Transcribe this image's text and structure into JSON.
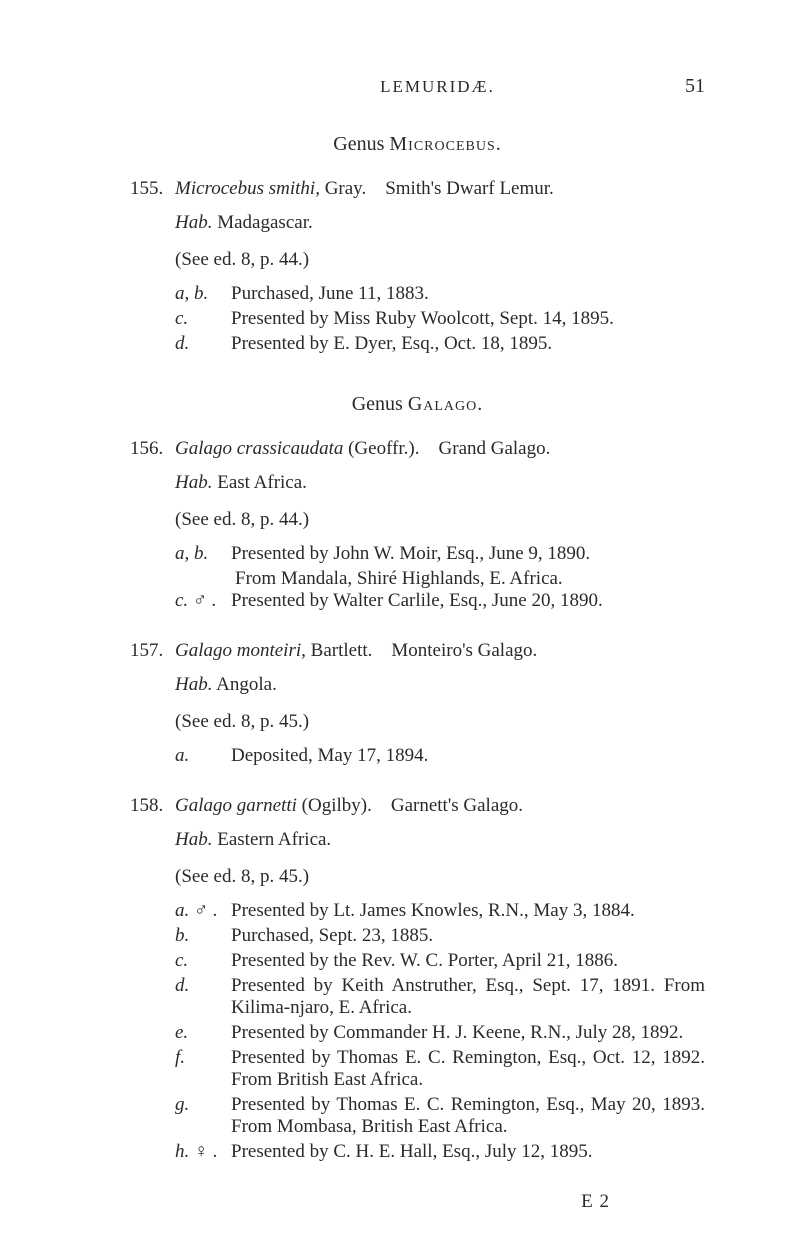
{
  "header": {
    "runningHead": "LEMURIDÆ.",
    "pageNumber": "51"
  },
  "genus1": {
    "prefix": "Genus ",
    "name": "Microcebus."
  },
  "entry155": {
    "number": "155.",
    "species": "Microcebus smithi,",
    "author": " Gray.",
    "common": "Smith's Dwarf Lemur.",
    "habLabel": "Hab.",
    "habText": " Madagascar.",
    "seeEd": "(See ed. 8, p. 44.)",
    "specA": {
      "label": "a, b.",
      "desc": "Purchased, June 11, 1883."
    },
    "specC": {
      "label": "c.",
      "desc": "Presented by Miss Ruby Woolcott, Sept. 14, 1895."
    },
    "specD": {
      "label": "d.",
      "desc": "Presented by E. Dyer, Esq., Oct. 18, 1895."
    }
  },
  "genus2": {
    "prefix": "Genus ",
    "name": "Galago."
  },
  "entry156": {
    "number": "156.",
    "species": "Galago crassicaudata",
    "author": " (Geoffr.).",
    "common": "Grand Galago.",
    "habLabel": "Hab.",
    "habText": " East Africa.",
    "seeEd": "(See ed. 8, p. 44.)",
    "specA": {
      "label": "a, b.",
      "desc": "Presented by John W. Moir, Esq., June 9, 1890."
    },
    "specACont": "From Mandala, Shiré Highlands, E. Africa.",
    "specC": {
      "label": "c. ♂ .",
      "desc": "Presented by Walter Carlile, Esq., June 20, 1890."
    }
  },
  "entry157": {
    "number": "157.",
    "species": "Galago monteiri,",
    "author": " Bartlett.",
    "common": "Monteiro's Galago.",
    "habLabel": "Hab.",
    "habText": " Angola.",
    "seeEd": "(See ed. 8, p. 45.)",
    "specA": {
      "label": "a.",
      "desc": "Deposited, May 17, 1894."
    }
  },
  "entry158": {
    "number": "158.",
    "species": "Galago garnetti",
    "author": " (Ogilby).",
    "common": "Garnett's Galago.",
    "habLabel": "Hab.",
    "habText": " Eastern Africa.",
    "seeEd": "(See ed. 8, p. 45.)",
    "specA": {
      "label": "a. ♂ .",
      "desc": "Presented by Lt. James Knowles, R.N., May 3, 1884."
    },
    "specB": {
      "label": "b.",
      "desc": "Purchased, Sept. 23, 1885."
    },
    "specC": {
      "label": "c.",
      "desc": "Presented by the Rev. W. C. Porter, April 21, 1886."
    },
    "specD": {
      "label": "d.",
      "desc": "Presented by Keith Anstruther, Esq., Sept. 17, 1891. From Kilima-njaro, E. Africa."
    },
    "specE": {
      "label": "e.",
      "desc": "Presented by Commander H. J. Keene, R.N., July 28, 1892."
    },
    "specF": {
      "label": "f.",
      "desc": "Presented by Thomas E. C. Remington, Esq., Oct. 12, 1892.    From British East Africa."
    },
    "specG": {
      "label": "g.",
      "desc": "Presented by Thomas E. C. Remington, Esq., May 20, 1893.    From Mombasa, British East Africa."
    },
    "specH": {
      "label": "h. ♀ .",
      "desc": "Presented by C. H. E. Hall, Esq., July 12, 1895."
    }
  },
  "signature": "E 2"
}
